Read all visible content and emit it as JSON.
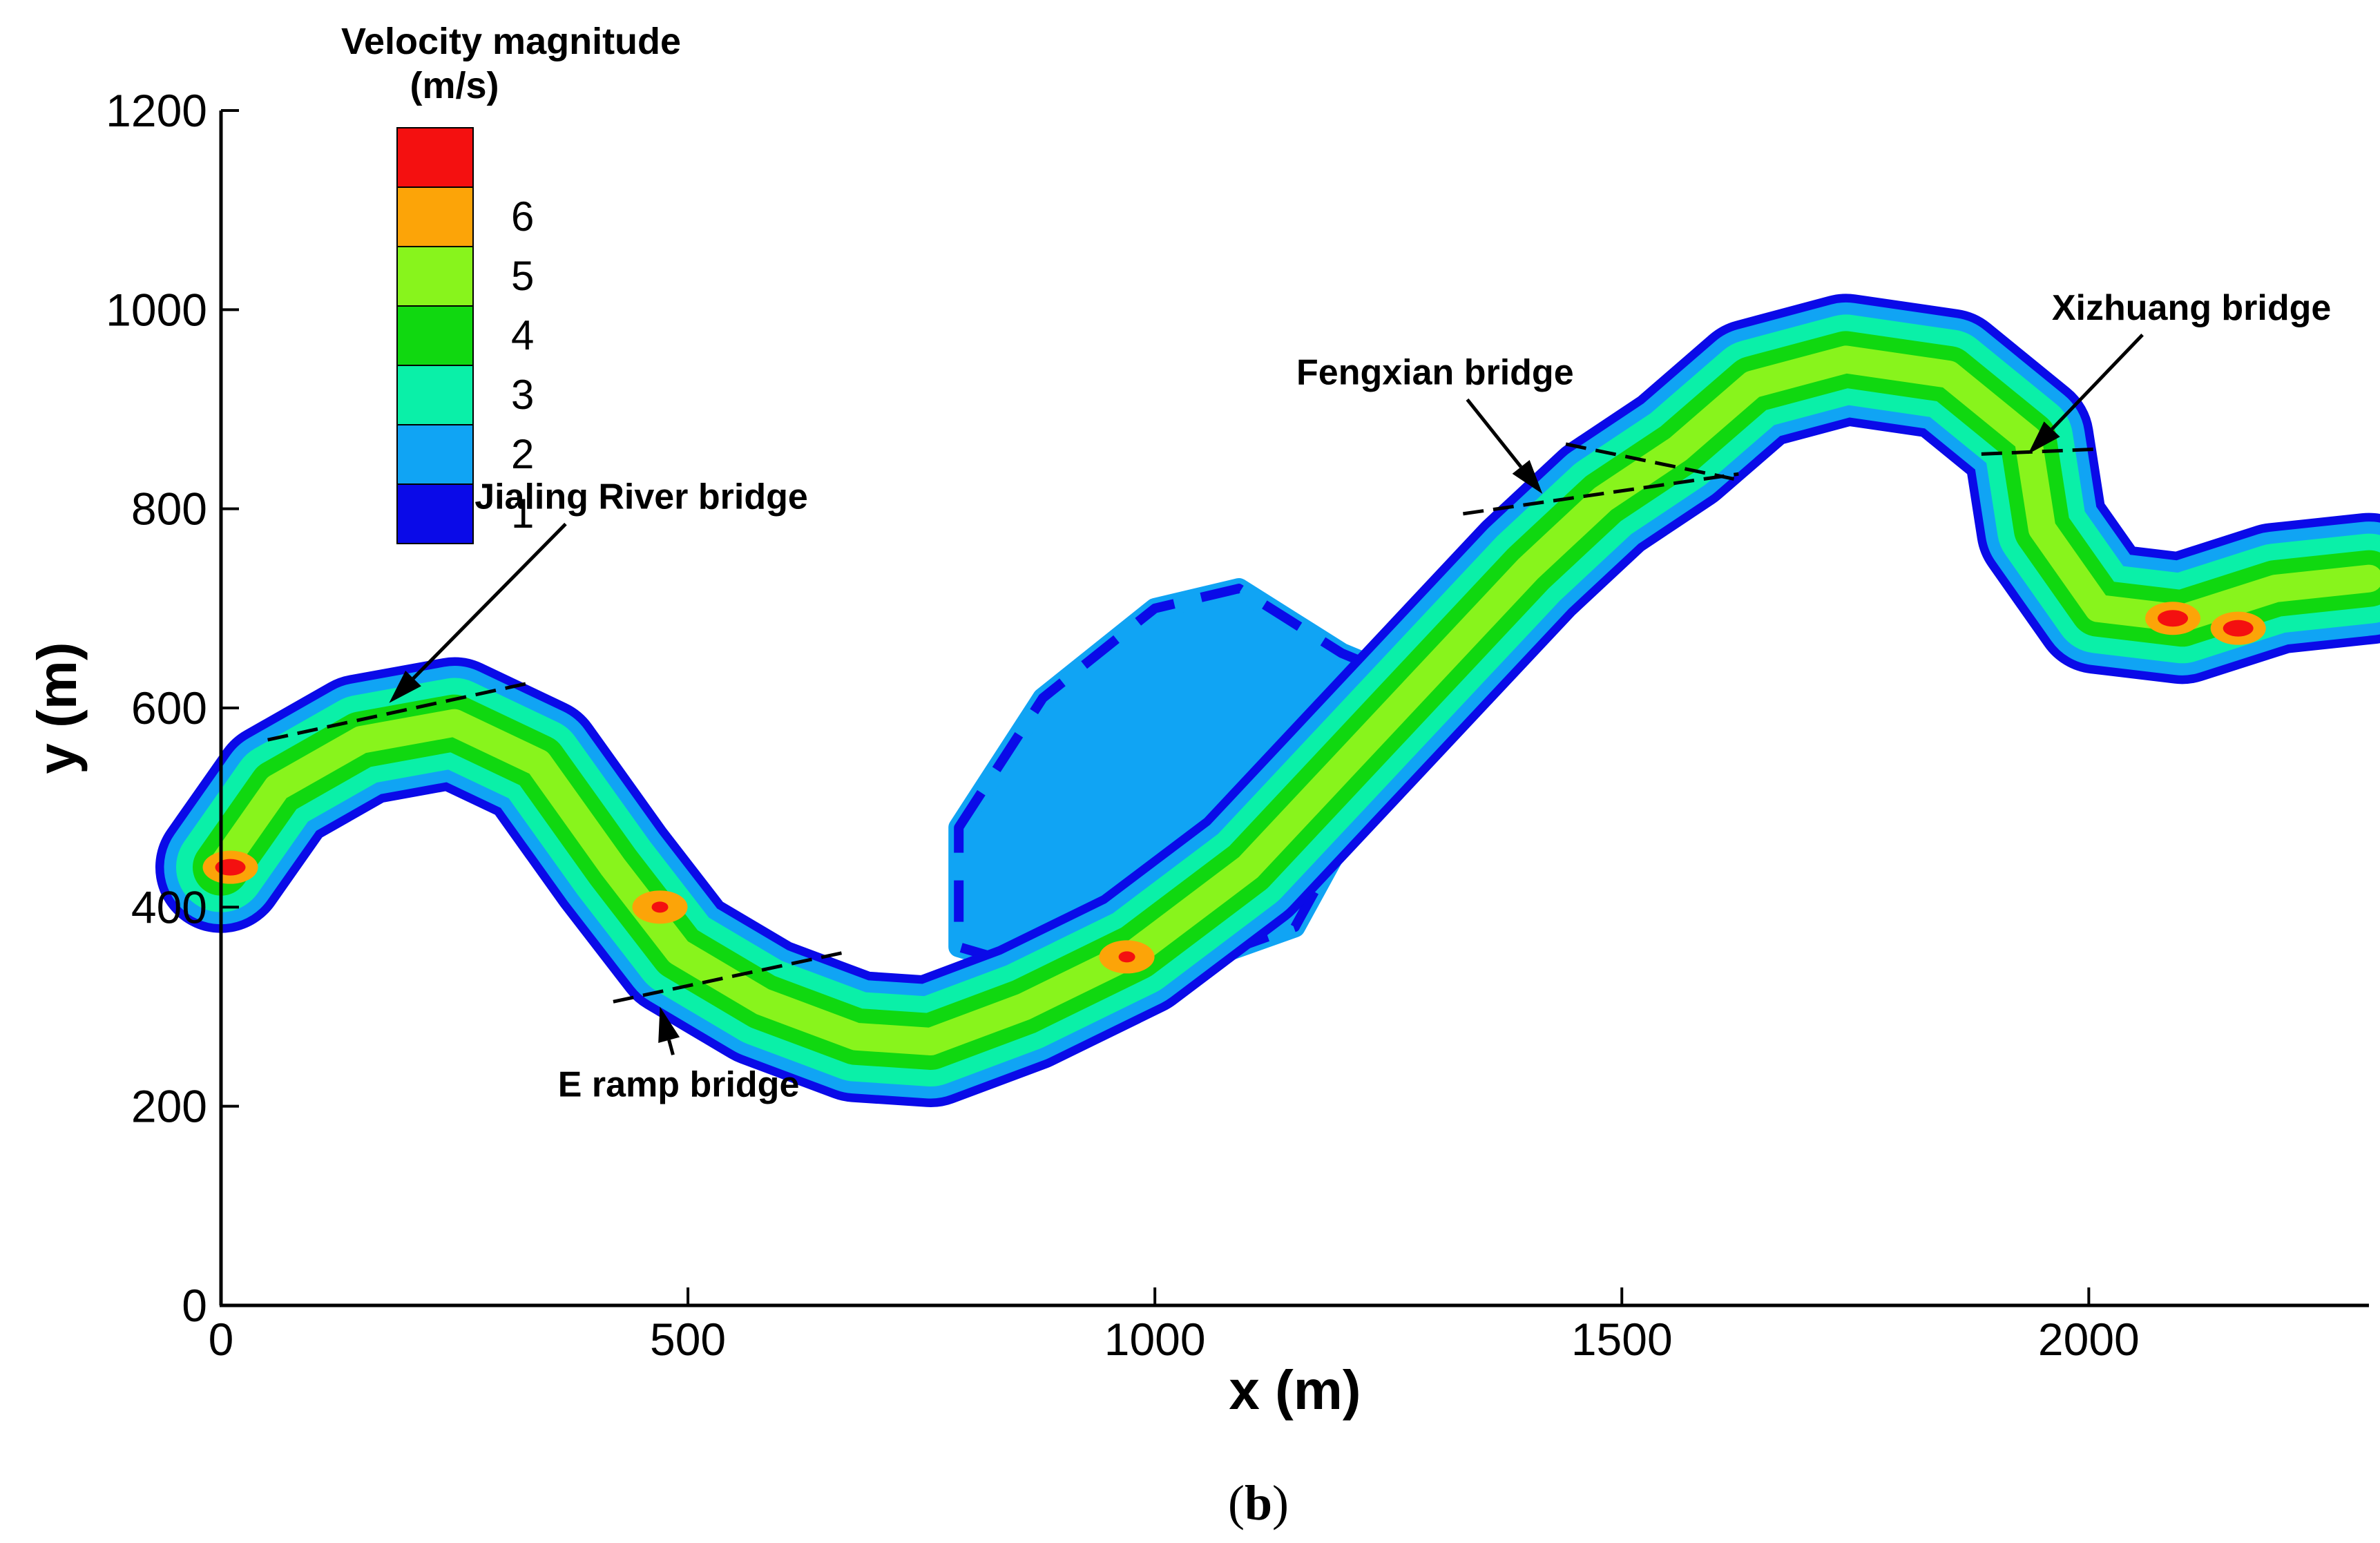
{
  "chart_data": {
    "type": "heatmap",
    "title": "",
    "xlabel": "x (m)",
    "ylabel": "y (m)",
    "xlim": [
      0,
      2300
    ],
    "ylim": [
      0,
      1200
    ],
    "x_ticks": [
      0,
      500,
      1000,
      1500,
      2000
    ],
    "x_tick_labels": [
      "0",
      "500",
      "1000",
      "1500",
      "2000"
    ],
    "y_ticks": [
      0,
      200,
      400,
      600,
      800,
      1000,
      1200
    ],
    "y_tick_labels": [
      "0",
      "200",
      "400",
      "600",
      "800",
      "1000",
      "1200"
    ],
    "grid": false,
    "colorbar": {
      "title_line1": "Velocity magnitude",
      "title_line2": "(m/s)",
      "placement": "top-left",
      "levels": [
        {
          "value": 1,
          "label": "1",
          "color": "#0a0ae8"
        },
        {
          "value": 2,
          "label": "2",
          "color": "#10a4f4"
        },
        {
          "value": 3,
          "label": "3",
          "color": "#0af0a8"
        },
        {
          "value": 4,
          "label": "4",
          "color": "#10d810"
        },
        {
          "value": 5,
          "label": "5",
          "color": "#88f41c"
        },
        {
          "value": 6,
          "label": "6",
          "color": "#fca408"
        },
        {
          "value": 7,
          "label": "",
          "color": "#f41010"
        }
      ]
    },
    "river_centerline": [
      [
        0,
        440
      ],
      [
        60,
        520
      ],
      [
        150,
        568
      ],
      [
        250,
        585
      ],
      [
        340,
        545
      ],
      [
        420,
        440
      ],
      [
        490,
        355
      ],
      [
        580,
        305
      ],
      [
        680,
        270
      ],
      [
        760,
        265
      ],
      [
        860,
        300
      ],
      [
        980,
        355
      ],
      [
        1100,
        440
      ],
      [
        1200,
        540
      ],
      [
        1300,
        640
      ],
      [
        1400,
        740
      ],
      [
        1480,
        810
      ],
      [
        1560,
        860
      ],
      [
        1640,
        925
      ],
      [
        1740,
        950
      ],
      [
        1850,
        935
      ],
      [
        1935,
        870
      ],
      [
        1950,
        780
      ],
      [
        2010,
        700
      ],
      [
        2100,
        690
      ],
      [
        2200,
        720
      ],
      [
        2300,
        730
      ]
    ],
    "low_velocity_region": [
      [
        790,
        480
      ],
      [
        880,
        610
      ],
      [
        1000,
        700
      ],
      [
        1090,
        720
      ],
      [
        1200,
        655
      ],
      [
        1290,
        620
      ],
      [
        1150,
        380
      ],
      [
        1000,
        330
      ],
      [
        900,
        330
      ],
      [
        790,
        360
      ]
    ],
    "high_velocity_spots": [
      {
        "x": 10,
        "y": 440,
        "level": 7
      },
      {
        "x": 470,
        "y": 400,
        "level": 6
      },
      {
        "x": 970,
        "y": 350,
        "level": 6
      },
      {
        "x": 2090,
        "y": 690,
        "level": 7
      },
      {
        "x": 2160,
        "y": 680,
        "level": 7
      }
    ],
    "bridges": [
      {
        "name": "Jialing River bridge",
        "line": [
          [
            50,
            568
          ],
          [
            330,
            625
          ]
        ],
        "arrow_tip": [
          180,
          605
        ],
        "label_pos": [
          450,
          800
        ]
      },
      {
        "name": "E ramp bridge",
        "line": [
          [
            420,
            305
          ],
          [
            670,
            355
          ]
        ],
        "arrow_tip": [
          470,
          300
        ],
        "label_pos": [
          490,
          210
        ]
      },
      {
        "name": "Fengxian bridge",
        "line": [
          [
            1330,
            795
          ],
          [
            1625,
            835
          ]
        ],
        "arrow_tip": [
          1415,
          815
        ],
        "label_pos": [
          1300,
          925
        ]
      },
      {
        "name": "Xizhuang bridge",
        "line": [
          [
            1885,
            855
          ],
          [
            2010,
            860
          ]
        ],
        "arrow_tip": [
          1935,
          855
        ],
        "label_pos": [
          2110,
          990
        ]
      },
      {
        "name": "",
        "line": [
          [
            1440,
            865
          ],
          [
            1620,
            830
          ]
        ],
        "arrow_tip": null,
        "label_pos": null
      }
    ]
  },
  "panel_label_open": "(",
  "panel_label_letter": "b",
  "panel_label_close": ")"
}
